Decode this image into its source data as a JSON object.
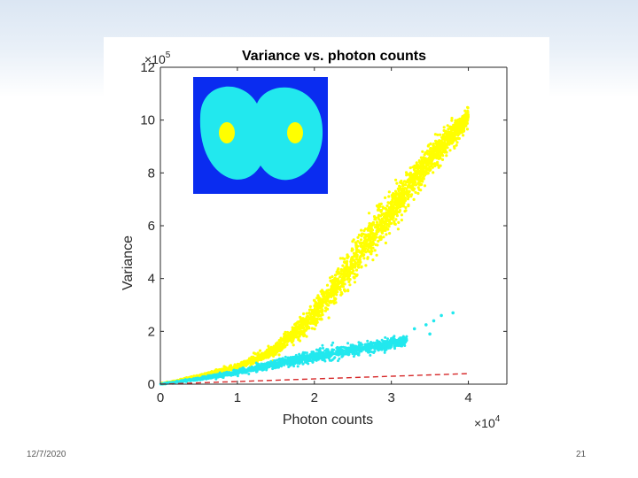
{
  "slide": {
    "date": "12/7/2020",
    "page_number": "21"
  },
  "chart_data": {
    "type": "scatter",
    "title": "Variance vs. photon counts",
    "xlabel": "Photon counts",
    "ylabel": "Variance",
    "x_multiplier_base": "×10",
    "x_multiplier_exp": "4",
    "y_multiplier_base": "×10",
    "y_multiplier_exp": "5",
    "xlim": [
      0,
      4.5
    ],
    "ylim": [
      0,
      12
    ],
    "x_ticks": [
      0,
      1,
      2,
      3,
      4
    ],
    "y_ticks": [
      0,
      2,
      4,
      6,
      8,
      10,
      12
    ],
    "x_tick_labels": [
      "0",
      "1",
      "2",
      "3",
      "4"
    ],
    "y_tick_labels": [
      "0",
      "2",
      "4",
      "6",
      "8",
      "10",
      "12"
    ],
    "series": [
      {
        "name": "central region (yellow)",
        "color": "#ffff00",
        "description_points": [
          [
            0.0,
            0.0
          ],
          [
            0.5,
            0.3
          ],
          [
            1.0,
            0.65
          ],
          [
            1.5,
            1.3
          ],
          [
            2.0,
            2.6
          ],
          [
            2.5,
            4.6
          ],
          [
            3.0,
            6.6
          ],
          [
            3.5,
            8.5
          ],
          [
            4.0,
            10.1
          ]
        ],
        "spread": [
          0.02,
          0.05,
          0.1,
          0.2,
          0.45,
          0.6,
          0.6,
          0.5,
          0.35
        ]
      },
      {
        "name": "peripheral region (cyan)",
        "color": "#22e8ee",
        "description_points": [
          [
            0.0,
            0.0
          ],
          [
            0.5,
            0.2
          ],
          [
            1.0,
            0.45
          ],
          [
            1.5,
            0.75
          ],
          [
            2.0,
            1.05
          ],
          [
            2.5,
            1.3
          ],
          [
            3.0,
            1.55
          ],
          [
            3.2,
            1.65
          ]
        ],
        "spread": [
          0.02,
          0.06,
          0.1,
          0.15,
          0.2,
          0.22,
          0.2,
          0.15
        ],
        "outliers": [
          [
            3.3,
            2.1
          ],
          [
            3.45,
            2.25
          ],
          [
            3.55,
            2.4
          ],
          [
            3.65,
            2.6
          ],
          [
            3.8,
            2.7
          ],
          [
            3.5,
            1.9
          ]
        ]
      },
      {
        "name": "Poisson reference",
        "color": "#d62728",
        "style": "dashed",
        "x": [
          0,
          4
        ],
        "y": [
          0,
          0.4
        ]
      }
    ],
    "inset": {
      "description": "intensity map inset",
      "background_color": "#0a2cf0",
      "blob_color": "#22e8ee",
      "spot_color": "#ffff00"
    }
  }
}
